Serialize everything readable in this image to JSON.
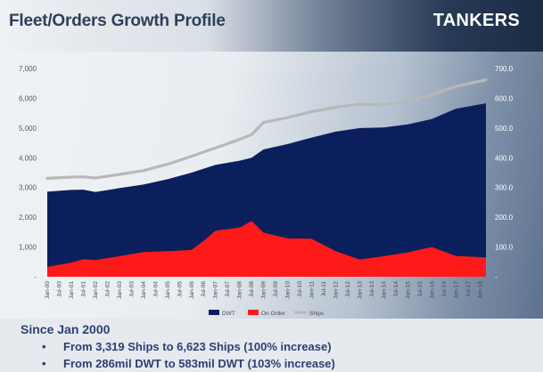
{
  "header": {
    "title": "Fleet/Orders Growth Profile",
    "badge": "TANKERS"
  },
  "summary": {
    "since": "Since Jan 2000",
    "bullets": [
      "From 3,319 Ships to 6,623 Ships (100% increase)",
      "From 286mil DWT to 583mil DWT (103% increase)"
    ]
  },
  "colors": {
    "dwt": "#0b1f5c",
    "on_order": "#ff1a1a",
    "ships": "#b8b8b8",
    "title": "#2e3f5a",
    "summary_text": "#2b3f73"
  },
  "chart_data": {
    "type": "area",
    "x_tick_labels": [
      "Jan-00",
      "Jul-00",
      "Jan-01",
      "Jul-01",
      "Jan-02",
      "Jul-02",
      "Jan-03",
      "Jul-03",
      "Jan-04",
      "Jul-04",
      "Jan-05",
      "Jul-05",
      "Jan-06",
      "Jul-06",
      "Jan-07",
      "Jul-07",
      "Jan-08",
      "Jul-08",
      "Jan-09",
      "Jul-09",
      "Jan-10",
      "Jul-10",
      "Jan-11",
      "Jul-11",
      "Jan-12",
      "Jul-12",
      "Jan-13",
      "Jul-13",
      "Jan-14",
      "Jul-14",
      "Jan-15",
      "Jul-15",
      "Jan-16",
      "Jul-16",
      "Jan-17",
      "Jul-17",
      "Jan-18"
    ],
    "x_range": [
      "Jan-00",
      "Apr-18"
    ],
    "left_axis": {
      "ticks": [
        "-",
        "1,000",
        "2,000",
        "3,000",
        "4,000",
        "5,000",
        "6,000",
        "7,000"
      ],
      "ylim": [
        0,
        7000
      ]
    },
    "right_axis": {
      "ticks": [
        "-",
        "100.0",
        "200.0",
        "300.0",
        "400.0",
        "500.0",
        "600.0",
        "700.0"
      ],
      "ylim": [
        0,
        700
      ]
    },
    "series": [
      {
        "name": "DWT",
        "kind": "area",
        "axis": "left",
        "x": [
          "Jan-00",
          "Jan-01",
          "Jul-01",
          "Jan-02",
          "Jan-03",
          "Jan-04",
          "Jan-05",
          "Jan-06",
          "Jan-07",
          "Jan-08",
          "Jul-08",
          "Jan-09",
          "Jan-10",
          "Jan-11",
          "Jan-12",
          "Jan-13",
          "Jan-14",
          "Jan-15",
          "Jan-16",
          "Jan-17",
          "Apr-18"
        ],
        "values": [
          2860,
          2920,
          2930,
          2850,
          2980,
          3100,
          3280,
          3500,
          3760,
          3900,
          4000,
          4280,
          4460,
          4680,
          4880,
          5000,
          5020,
          5120,
          5300,
          5650,
          5830
        ]
      },
      {
        "name": "On Order",
        "kind": "area",
        "axis": "left",
        "x": [
          "Jan-00",
          "Jan-01",
          "Jul-01",
          "Jan-02",
          "Jan-03",
          "Jan-04",
          "Jan-05",
          "Jan-06",
          "Jul-06",
          "Jan-07",
          "Jan-08",
          "Jul-08",
          "Jan-09",
          "Jan-10",
          "Jan-11",
          "Jan-12",
          "Jan-13",
          "Jan-14",
          "Jan-15",
          "Jan-16",
          "Jan-17",
          "Apr-18"
        ],
        "values": [
          330,
          480,
          590,
          560,
          690,
          830,
          860,
          900,
          1200,
          1550,
          1650,
          1880,
          1480,
          1290,
          1280,
          860,
          580,
          690,
          820,
          1000,
          700,
          650
        ]
      },
      {
        "name": "Ships",
        "kind": "line",
        "axis": "right",
        "x": [
          "Jan-00",
          "Jan-01",
          "Jul-01",
          "Jan-02",
          "Jan-03",
          "Jan-04",
          "Jan-05",
          "Jan-06",
          "Jan-07",
          "Jan-08",
          "Jul-08",
          "Jan-09",
          "Jan-10",
          "Jan-11",
          "Jan-12",
          "Jan-13",
          "Jan-14",
          "Jan-15",
          "Jan-16",
          "Jan-17",
          "Apr-18"
        ],
        "values": [
          331,
          335,
          336,
          332,
          344,
          357,
          378,
          405,
          433,
          462,
          478,
          519,
          535,
          555,
          570,
          580,
          578,
          590,
          612,
          640,
          662
        ]
      }
    ],
    "legend": {
      "position": "bottom-center",
      "items": [
        "DWT",
        "On Order",
        "Ships"
      ]
    },
    "grid": false
  }
}
